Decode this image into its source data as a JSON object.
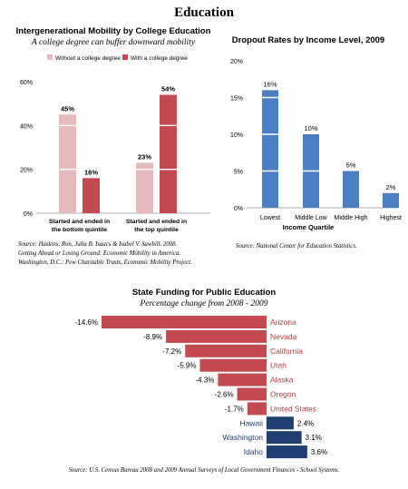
{
  "page_title": "Education",
  "colors": {
    "pink": "#e8b9bd",
    "red": "#c44a52",
    "blue": "#4a7fc4",
    "navy": "#1f3f73",
    "state_red_text": "#b43c44",
    "state_blue_text": "#1f3f73"
  },
  "chart_data": [
    {
      "type": "bar",
      "title": "Intergenerational Mobility by College Education",
      "subtitle": "A college degree can buffer downward mobility",
      "categories": [
        "Started and ended in the bottom quintile",
        "Started and ended in the top quintile"
      ],
      "category_lines": [
        [
          "Started and ended in",
          "the bottom quintile"
        ],
        [
          "Started and ended in",
          "the top quintile"
        ]
      ],
      "series": [
        {
          "name": "Without a college degree",
          "values": [
            45,
            23
          ]
        },
        {
          "name": "With a college degree",
          "values": [
            16,
            54
          ]
        }
      ],
      "value_labels": [
        [
          "45%",
          "16%"
        ],
        [
          "23%",
          "54%"
        ]
      ],
      "ylim": [
        0,
        60
      ],
      "yticks": [
        "0%",
        "20%",
        "40%",
        "60%"
      ],
      "legend": "top",
      "source": [
        "Source: Haskins, Ron, Julia B. Isaacs & Isabel V. Sawhill. 2008.",
        "Getting Ahead or Losing Ground: Economic Mobility in America.",
        "Washington, D.C.: Pew Charitable Trusts, Economic Mobility Project."
      ]
    },
    {
      "type": "bar",
      "title": "Dropout Rates by Income Level, 2009",
      "xlabel": "Income Quartile",
      "categories": [
        "Lowest",
        "Middle Low",
        "Middle High",
        "Highest"
      ],
      "values": [
        16,
        10,
        5,
        2
      ],
      "value_labels": [
        "16%",
        "10%",
        "5%",
        "2%"
      ],
      "ylim": [
        0,
        20
      ],
      "yticks": [
        "0%",
        "5%",
        "10%",
        "15%",
        "20%"
      ],
      "source": "Source: National Center for Education Statistics."
    },
    {
      "type": "bar",
      "orientation": "horizontal",
      "title": "State Funding for Public Education",
      "subtitle": "Percentage change from 2008 - 2009",
      "categories": [
        "Arizona",
        "Nevada",
        "California",
        "Utah",
        "Alaska",
        "Oregon",
        "United States",
        "Hawaii",
        "Washington",
        "Idaho"
      ],
      "values": [
        -14.6,
        -8.9,
        -7.2,
        -5.9,
        -4.3,
        -2.6,
        -1.7,
        2.4,
        3.1,
        3.6
      ],
      "value_labels": [
        "-14.6%",
        "-8.9%",
        "-7.2%",
        "-5.9%",
        "-4.3%",
        "-2.6%",
        "-1.7%",
        "2.4%",
        "3.1%",
        "3.6%"
      ],
      "source": "Source: U.S. Census Bureau 2008 and 2009 Annual Surveys of Local Government Finances - School Systems."
    }
  ]
}
